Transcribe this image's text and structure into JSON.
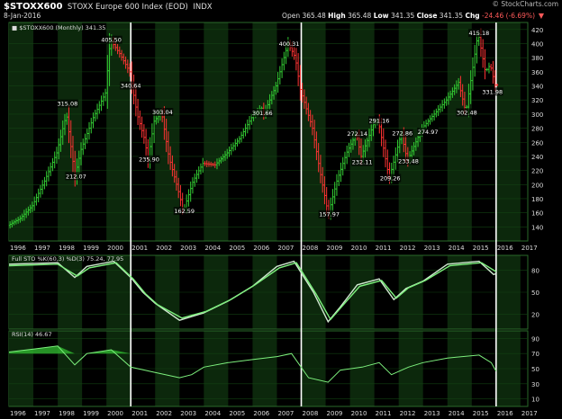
{
  "header": {
    "symbol": "$STOXX600",
    "name": "STOXX Europe 600 Index (EOD)",
    "exchange": "INDX",
    "date": "8-Jan-2016",
    "watermark": "© StockCharts.com",
    "open_label": "Open",
    "open": "365.48",
    "high_label": "High",
    "high": "365.48",
    "low_label": "Low",
    "low": "341.35",
    "close_label": "Close",
    "close": "341.35",
    "chg_label": "Chg",
    "chg": "-24.46 (-6.69%)"
  },
  "colors": {
    "up": "#33cc33",
    "down": "#ff3333",
    "line": "#7df07d",
    "band": "#0c280c",
    "grid": "#124012",
    "fill": "#2fb52f"
  },
  "chart_data": [
    {
      "type": "bar",
      "legend": "$STOXX600 (Monthly) 341.35",
      "x_ticks": [
        "1996",
        "1997",
        "1998",
        "1999",
        "2000",
        "2001",
        "2002",
        "2003",
        "2004",
        "2005",
        "2006",
        "2007",
        "2008",
        "2009",
        "2010",
        "2011",
        "2012",
        "2013",
        "2014",
        "2015",
        "2016",
        "2017"
      ],
      "ylim": [
        120,
        430
      ],
      "y_ticks": [
        140,
        160,
        180,
        200,
        220,
        240,
        260,
        280,
        300,
        320,
        340,
        360,
        380,
        400,
        420
      ],
      "vertical_markers": [
        2001,
        2008,
        2016
      ],
      "price_points": [
        [
          1996,
          142
        ],
        [
          1996.5,
          152
        ],
        [
          1997,
          170
        ],
        [
          1997.5,
          205
        ],
        [
          1998,
          245
        ],
        [
          1998.4,
          300
        ],
        [
          1998.75,
          212.07
        ],
        [
          1999,
          250
        ],
        [
          1999.5,
          295
        ],
        [
          2000,
          330
        ],
        [
          2000.2,
          405.5
        ],
        [
          2000.6,
          385
        ],
        [
          2001,
          360
        ],
        [
          2001.3,
          300
        ],
        [
          2001.6,
          265
        ],
        [
          2001.75,
          235.9
        ],
        [
          2002,
          290
        ],
        [
          2002.3,
          303.04
        ],
        [
          2002.6,
          240
        ],
        [
          2003,
          190
        ],
        [
          2003.2,
          162.59
        ],
        [
          2003.6,
          205
        ],
        [
          2004,
          230
        ],
        [
          2004.5,
          228
        ],
        [
          2005,
          245
        ],
        [
          2005.5,
          265
        ],
        [
          2006,
          295
        ],
        [
          2006.4,
          310
        ],
        [
          2006.5,
          300
        ],
        [
          2007,
          340
        ],
        [
          2007.5,
          400.31
        ],
        [
          2007.8,
          380
        ],
        [
          2008,
          335
        ],
        [
          2008.5,
          280
        ],
        [
          2008.8,
          220
        ],
        [
          2009.15,
          157.97
        ],
        [
          2009.5,
          205
        ],
        [
          2009.9,
          245
        ],
        [
          2010.3,
          272.14
        ],
        [
          2010.5,
          240
        ],
        [
          2011,
          285
        ],
        [
          2011.2,
          291.16
        ],
        [
          2011.65,
          209.26
        ],
        [
          2011.9,
          240
        ],
        [
          2012.15,
          272.86
        ],
        [
          2012.4,
          233.48
        ],
        [
          2013,
          280
        ],
        [
          2013.5,
          300
        ],
        [
          2014,
          320
        ],
        [
          2014.5,
          345
        ],
        [
          2014.8,
          302.48
        ],
        [
          2015.3,
          415.18
        ],
        [
          2015.6,
          360
        ],
        [
          2015.8,
          370
        ],
        [
          2016,
          341.35
        ]
      ],
      "annotations": [
        {
          "label": "315.08",
          "x": 1998.4,
          "y": 315.08
        },
        {
          "label": "212.07",
          "x": 1998.75,
          "y": 212.07
        },
        {
          "label": "405.50",
          "x": 2000.2,
          "y": 405.5
        },
        {
          "label": "340.64",
          "x": 2001.0,
          "y": 340.64
        },
        {
          "label": "303.04",
          "x": 2002.3,
          "y": 303.04
        },
        {
          "label": "235.90",
          "x": 2001.75,
          "y": 235.9
        },
        {
          "label": "162.59",
          "x": 2003.2,
          "y": 162.59
        },
        {
          "label": "301.66",
          "x": 2006.4,
          "y": 301.66
        },
        {
          "label": "400.31",
          "x": 2007.5,
          "y": 400.31
        },
        {
          "label": "157.97",
          "x": 2009.15,
          "y": 157.97
        },
        {
          "label": "272.14",
          "x": 2010.3,
          "y": 272.14
        },
        {
          "label": "232.11",
          "x": 2010.5,
          "y": 232.11
        },
        {
          "label": "291.16",
          "x": 2011.2,
          "y": 291.16
        },
        {
          "label": "209.26",
          "x": 2011.65,
          "y": 209.26
        },
        {
          "label": "272.86",
          "x": 2012.15,
          "y": 272.86
        },
        {
          "label": "233.48",
          "x": 2012.4,
          "y": 233.48
        },
        {
          "label": "274.97",
          "x": 2013.2,
          "y": 274.97
        },
        {
          "label": "302.48",
          "x": 2014.8,
          "y": 302.48
        },
        {
          "label": "415.18",
          "x": 2015.3,
          "y": 415.18
        },
        {
          "label": "331.98",
          "x": 2015.85,
          "y": 331.98
        }
      ]
    },
    {
      "type": "line",
      "legend": "Full STO %K(60,3) %D(3) 75.24, 77.95",
      "ylim": [
        0,
        100
      ],
      "y_ticks": [
        20,
        50,
        80
      ],
      "series": [
        {
          "name": "%K",
          "points": [
            [
              1996,
              88
            ],
            [
              1998,
              90
            ],
            [
              1998.7,
              70
            ],
            [
              1999.2,
              85
            ],
            [
              2000.3,
              92
            ],
            [
              2001,
              70
            ],
            [
              2001.5,
              50
            ],
            [
              2002,
              35
            ],
            [
              2003,
              12
            ],
            [
              2004,
              22
            ],
            [
              2005,
              38
            ],
            [
              2006,
              58
            ],
            [
              2007,
              85
            ],
            [
              2007.7,
              92
            ],
            [
              2008.5,
              50
            ],
            [
              2009.1,
              10
            ],
            [
              2009.6,
              30
            ],
            [
              2010.3,
              60
            ],
            [
              2011.2,
              68
            ],
            [
              2011.8,
              40
            ],
            [
              2012.3,
              55
            ],
            [
              2013,
              65
            ],
            [
              2014,
              88
            ],
            [
              2015.3,
              92
            ],
            [
              2015.9,
              74
            ],
            [
              2016,
              75.24
            ]
          ]
        },
        {
          "name": "%D",
          "points": [
            [
              1996,
              86
            ],
            [
              1998,
              88
            ],
            [
              1998.8,
              72
            ],
            [
              1999.3,
              83
            ],
            [
              2000.4,
              90
            ],
            [
              2001.1,
              68
            ],
            [
              2001.6,
              48
            ],
            [
              2002.1,
              33
            ],
            [
              2003.1,
              15
            ],
            [
              2004.1,
              24
            ],
            [
              2005.1,
              40
            ],
            [
              2006.1,
              60
            ],
            [
              2007.1,
              83
            ],
            [
              2007.8,
              90
            ],
            [
              2008.6,
              48
            ],
            [
              2009.2,
              13
            ],
            [
              2009.7,
              32
            ],
            [
              2010.4,
              58
            ],
            [
              2011.3,
              66
            ],
            [
              2011.9,
              42
            ],
            [
              2012.4,
              56
            ],
            [
              2013.1,
              66
            ],
            [
              2014.1,
              86
            ],
            [
              2015.4,
              90
            ],
            [
              2016,
              77.95
            ]
          ]
        }
      ]
    },
    {
      "type": "area",
      "legend": "RSI(14) 46.67",
      "ylim": [
        0,
        100
      ],
      "y_ticks": [
        10,
        30,
        50,
        70,
        90
      ],
      "reference": 70,
      "series": [
        {
          "name": "RSI(14)",
          "points": [
            [
              1996,
              72
            ],
            [
              1997,
              76
            ],
            [
              1998,
              80
            ],
            [
              1998.7,
              55
            ],
            [
              1999.2,
              70
            ],
            [
              2000.2,
              75
            ],
            [
              2001,
              52
            ],
            [
              2002,
              45
            ],
            [
              2003,
              38
            ],
            [
              2003.5,
              42
            ],
            [
              2004,
              52
            ],
            [
              2005,
              58
            ],
            [
              2006,
              62
            ],
            [
              2007,
              66
            ],
            [
              2007.6,
              70
            ],
            [
              2008.3,
              38
            ],
            [
              2009.1,
              32
            ],
            [
              2009.6,
              48
            ],
            [
              2010.5,
              52
            ],
            [
              2011.2,
              58
            ],
            [
              2011.7,
              42
            ],
            [
              2012.4,
              52
            ],
            [
              2013,
              58
            ],
            [
              2014,
              64
            ],
            [
              2015.3,
              68
            ],
            [
              2015.8,
              58
            ],
            [
              2016,
              46.67
            ]
          ]
        }
      ]
    }
  ]
}
